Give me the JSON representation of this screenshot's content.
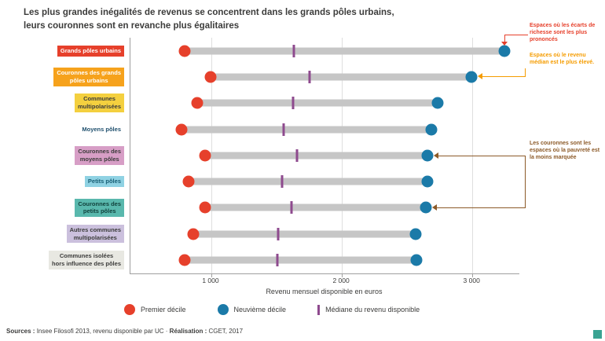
{
  "title": {
    "line1": "Les plus grandes inégalités de revenus se concentrent dans les grands pôles urbains,",
    "line2": "leurs couronnes sont en revanche plus égalitaires"
  },
  "chart_data": {
    "type": "dumbbell",
    "title": "Les plus grandes inégalités de revenus se concentrent dans les grands pôles urbains, leurs couronnes sont en revanche plus égalitaires",
    "xlabel": "Revenu mensuel disponible en euros",
    "x_domain": [
      380,
      3360
    ],
    "x_ticks": [
      1000,
      2000,
      3000
    ],
    "x_tick_labels": [
      "1 000",
      "2 000",
      "3 000"
    ],
    "grid": true,
    "series_names": [
      "Premier décile",
      "Médiane du revenu disponible",
      "Neuvième décile"
    ],
    "categories": [
      {
        "label": "Grands pôles urbains",
        "bg": "#e6402b",
        "fg": "#ffffff",
        "premier_decile": 800,
        "mediane": 1640,
        "neuvieme_decile": 3250
      },
      {
        "label": "Couronnes des grands\npôles urbains",
        "bg": "#f6a21c",
        "fg": "#ffffff",
        "premier_decile": 1000,
        "mediane": 1760,
        "neuvieme_decile": 3000
      },
      {
        "label": "Communes\nmultipolarisées",
        "bg": "#f4d03f",
        "fg": "#3c3c3b",
        "premier_decile": 900,
        "mediane": 1630,
        "neuvieme_decile": 2740
      },
      {
        "label": "Moyens pôles",
        "bg": "#ffffff",
        "fg": "#20506e",
        "premier_decile": 780,
        "mediane": 1560,
        "neuvieme_decile": 2690
      },
      {
        "label": "Couronnes des\nmoyens pôles",
        "bg": "#d79ec6",
        "fg": "#3c3c3b",
        "premier_decile": 960,
        "mediane": 1660,
        "neuvieme_decile": 2660
      },
      {
        "label": "Petits pôles",
        "bg": "#8fd2e3",
        "fg": "#175d74",
        "premier_decile": 830,
        "mediane": 1550,
        "neuvieme_decile": 2660
      },
      {
        "label": "Couronnes des\npetits pôles",
        "bg": "#59b8ad",
        "fg": "#11413c",
        "premier_decile": 960,
        "mediane": 1620,
        "neuvieme_decile": 2650
      },
      {
        "label": "Autres communes\nmultipolarisées",
        "bg": "#cbc0dd",
        "fg": "#3c3c3b",
        "premier_decile": 870,
        "mediane": 1520,
        "neuvieme_decile": 2570
      },
      {
        "label": "Communes isolées\nhors influence des pôles",
        "bg": "#e8e8e2",
        "fg": "#3c3c3b",
        "premier_decile": 800,
        "mediane": 1510,
        "neuvieme_decile": 2580
      }
    ]
  },
  "legend": [
    {
      "label": "Premier décile",
      "swatch": "dot",
      "color": "#e6402b"
    },
    {
      "label": "Neuvième décile",
      "swatch": "dot",
      "color": "#1b7aa8"
    },
    {
      "label": "Médiane du revenu disponible",
      "swatch": "line",
      "color": "#8e4a8e"
    }
  ],
  "annotations": [
    {
      "text": "Espaces où les écarts de richesse sont les plus prononcés",
      "color": "#e6402b"
    },
    {
      "text": "Espaces où le revenu médian est le plus élevé.",
      "color": "#f59c00"
    },
    {
      "text": "Les couronnes sont les espaces où la pauvreté est la moins marquée",
      "color": "#8c5a28"
    }
  ],
  "sources": {
    "label1": "Sources :",
    "text1": " Insee Filosofi 2013, revenu disponible par UC · ",
    "label2": "Réalisation :",
    "text2": " CGET, 2017"
  },
  "palette": {
    "premier_decile": "#e6402b",
    "neuvieme_decile": "#1b7aa8",
    "mediane": "#8e4a8e",
    "bar": "#c6c6c6",
    "logo": "#3aa392",
    "title_text": "#3c3c3b"
  }
}
